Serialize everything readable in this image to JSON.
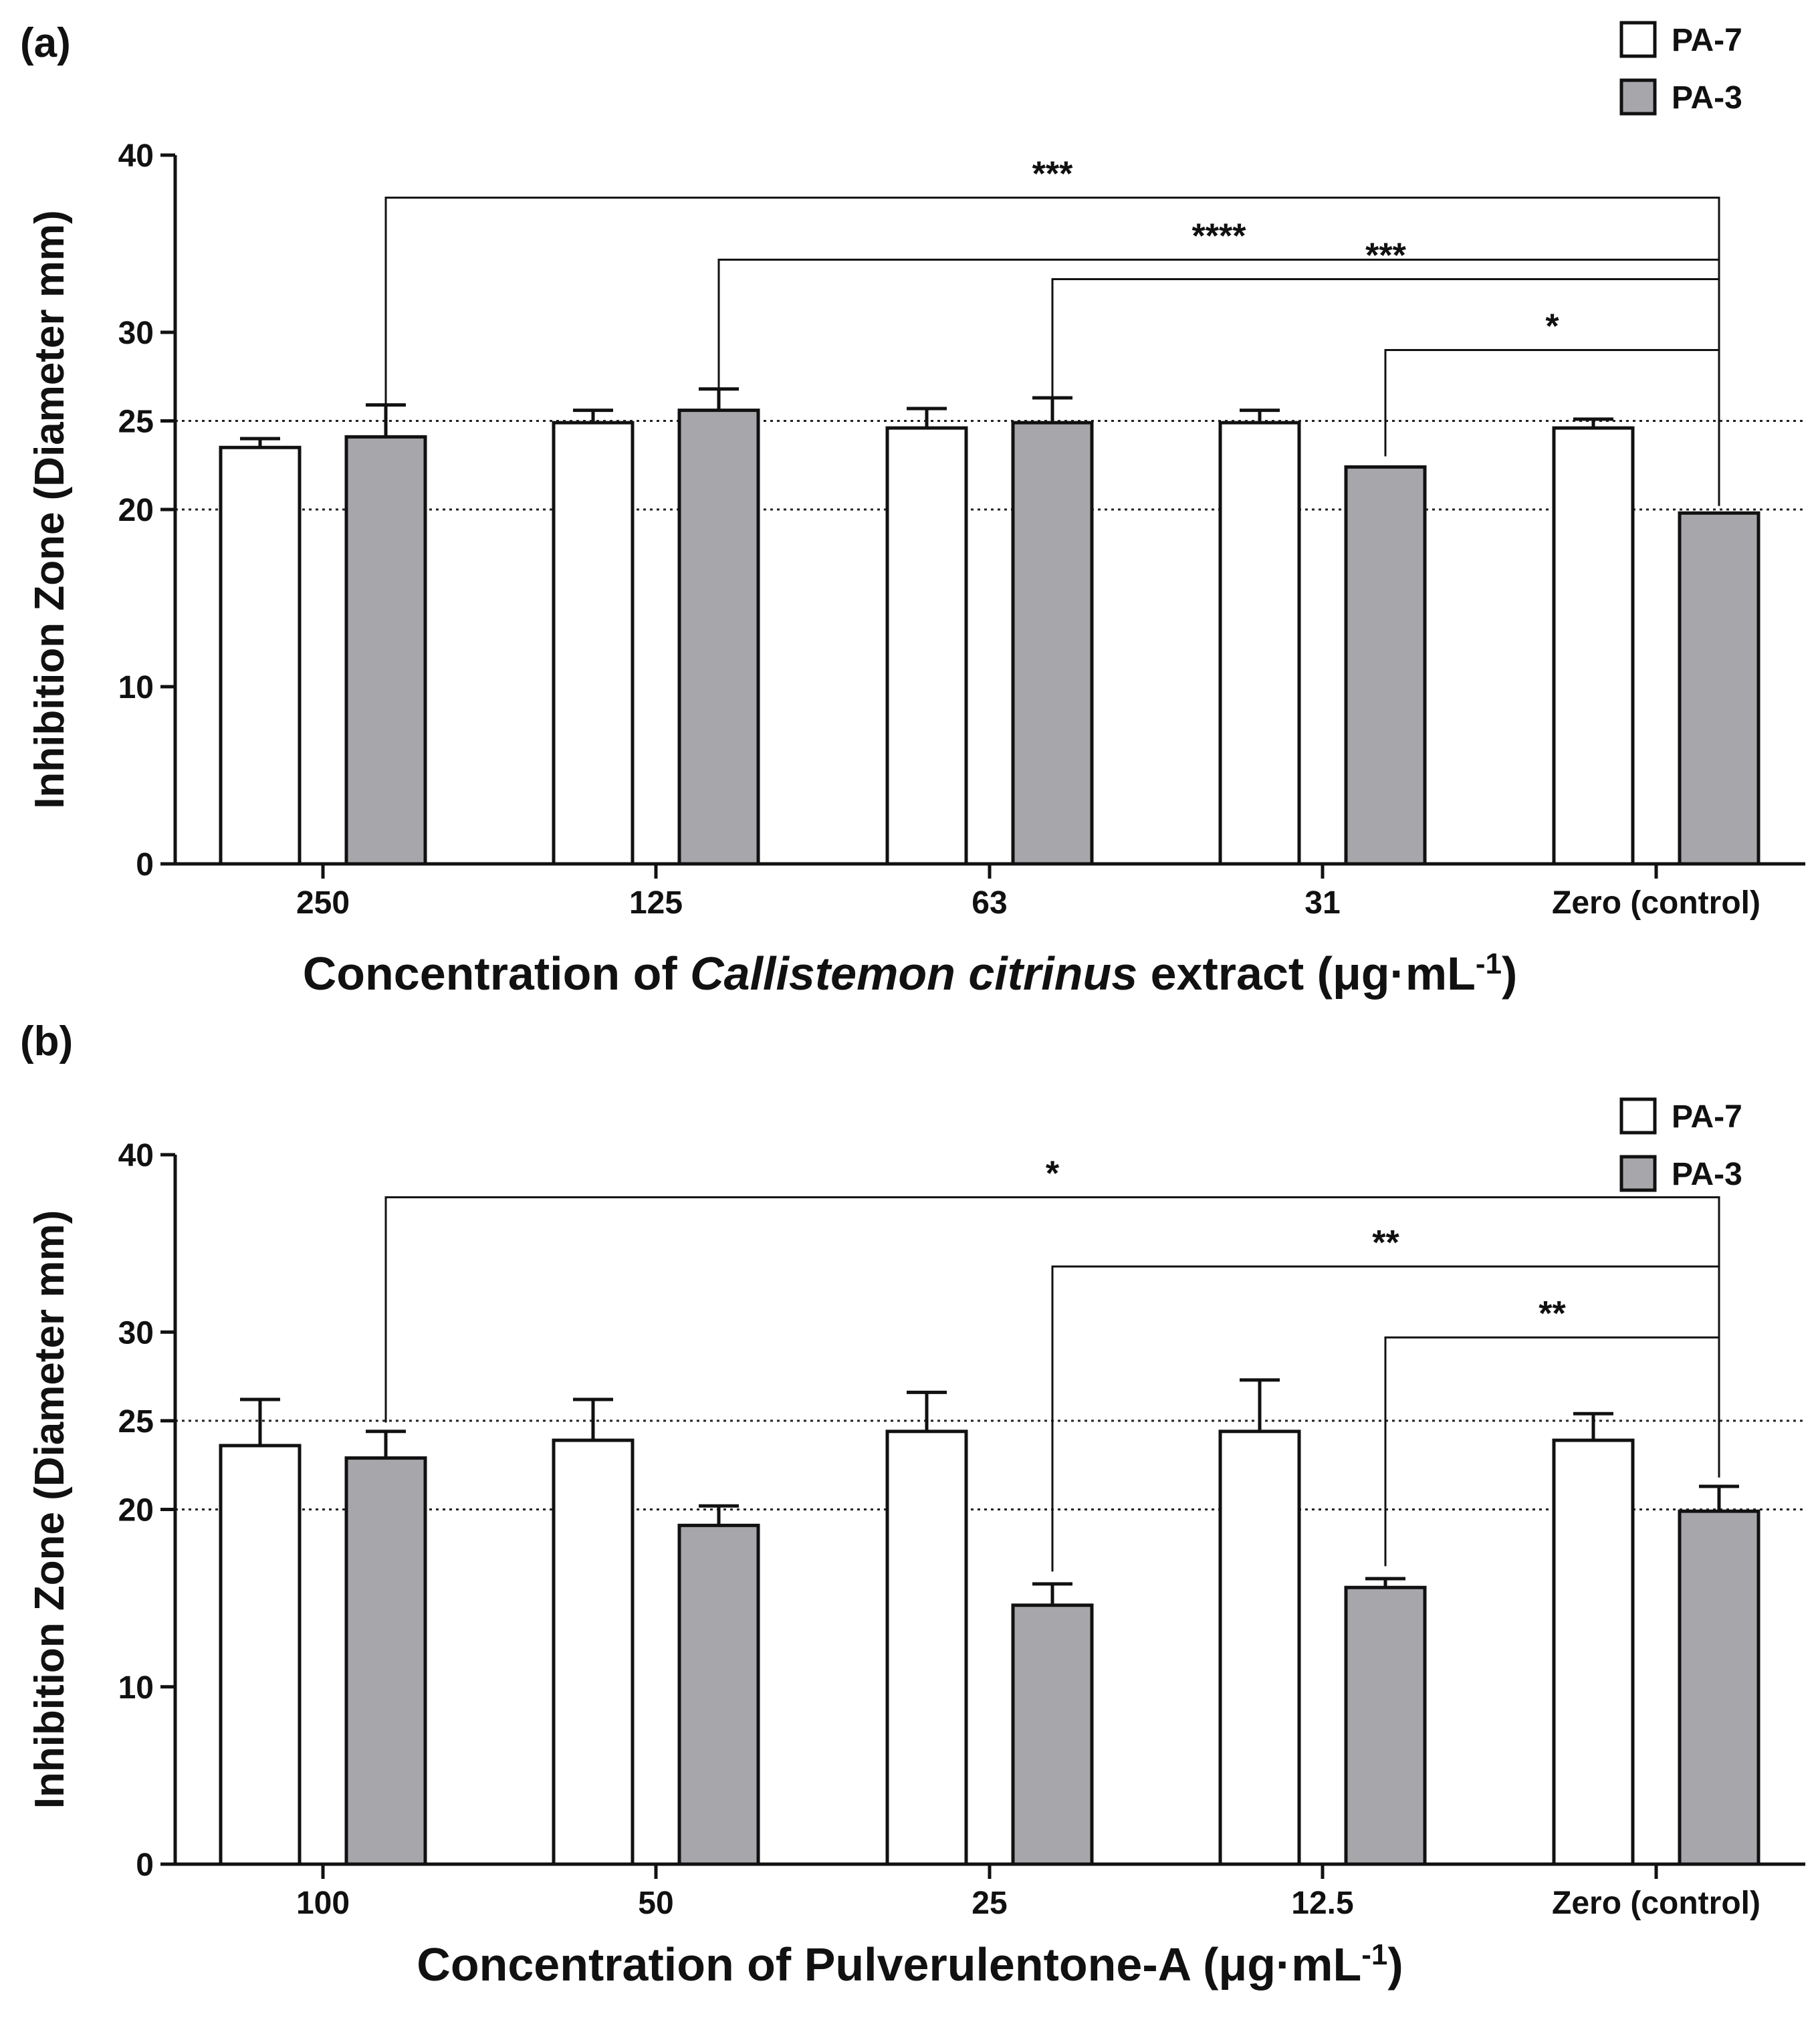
{
  "colors": {
    "pa7_fill": "#ffffff",
    "pa3_fill": "#a7a6ab",
    "stroke": "#111111"
  },
  "chart_data": [
    {
      "panel_label": "(a)",
      "type": "bar",
      "categories": [
        "250",
        "125",
        "63",
        "31",
        "Zero (control)"
      ],
      "series": [
        {
          "name": "PA-7",
          "values": [
            23.5,
            24.9,
            24.6,
            24.9,
            24.6
          ],
          "errors": [
            0.5,
            0.7,
            1.1,
            0.7,
            0.5
          ]
        },
        {
          "name": "PA-3",
          "values": [
            24.1,
            25.6,
            24.9,
            22.4,
            19.8
          ],
          "errors": [
            1.8,
            1.2,
            1.4,
            0,
            0
          ]
        }
      ],
      "ylabel": "Inhibition Zone (Diameter mm)",
      "xlabel": {
        "before": "Concentration of ",
        "italic": "Callistemon citrinus",
        "after": " extract  (μg·mL",
        "sup": "-1",
        "close": ")"
      },
      "ylim": [
        0,
        40
      ],
      "yticks": [
        0,
        10,
        20,
        25,
        30,
        40
      ],
      "reference_lines": [
        20,
        25
      ],
      "legend": [
        "PA-7",
        "PA-3"
      ],
      "significance": [
        {
          "from": "250",
          "to": "Zero (control)",
          "label": "***",
          "bracket_y": 37.6,
          "start_top": 25.9,
          "end_top": 29.0
        },
        {
          "from": "125",
          "to": "Zero (control)",
          "label": "****",
          "bracket_y": 34.1,
          "start_top": 26.8,
          "end_top": 29.0
        },
        {
          "from": "63",
          "to": "Zero (control)",
          "label": "***",
          "bracket_y": 33.0,
          "start_top": 26.3,
          "end_top": 29.0
        },
        {
          "from": "31",
          "to": "Zero (control)",
          "label": "*",
          "bracket_y": 29.0,
          "start_top": 23.0,
          "end_top": 20.2
        }
      ]
    },
    {
      "panel_label": "(b)",
      "type": "bar",
      "categories": [
        "100",
        "50",
        "25",
        "12.5",
        "Zero (control)"
      ],
      "series": [
        {
          "name": "PA-7",
          "values": [
            23.6,
            23.9,
            24.4,
            24.4,
            23.9
          ],
          "errors": [
            2.6,
            2.3,
            2.2,
            2.9,
            1.5
          ]
        },
        {
          "name": "PA-3",
          "values": [
            22.9,
            19.1,
            14.6,
            15.6,
            19.9
          ],
          "errors": [
            1.5,
            1.1,
            1.2,
            0.5,
            1.4
          ]
        }
      ],
      "ylabel": "Inhibition Zone (Diameter mm)",
      "xlabel": {
        "before": "Concentration of Pulverulentone-A  (μg·mL",
        "italic": "",
        "after": "",
        "sup": "-1",
        "close": ")"
      },
      "ylim": [
        0,
        40
      ],
      "yticks": [
        0,
        10,
        20,
        25,
        30,
        40
      ],
      "reference_lines": [
        20,
        25
      ],
      "legend": [
        "PA-7",
        "PA-3"
      ],
      "significance": [
        {
          "from": "100",
          "to": "Zero (control)",
          "label": "*",
          "bracket_y": 37.6,
          "start_top": 24.9,
          "end_top": 26.0
        },
        {
          "from": "25",
          "to": "Zero (control)",
          "label": "**",
          "bracket_y": 33.7,
          "start_top": 16.5,
          "end_top": 26.0
        },
        {
          "from": "12.5",
          "to": "Zero (control)",
          "label": "**",
          "bracket_y": 29.7,
          "start_top": 16.8,
          "end_top": 21.8
        }
      ]
    }
  ]
}
